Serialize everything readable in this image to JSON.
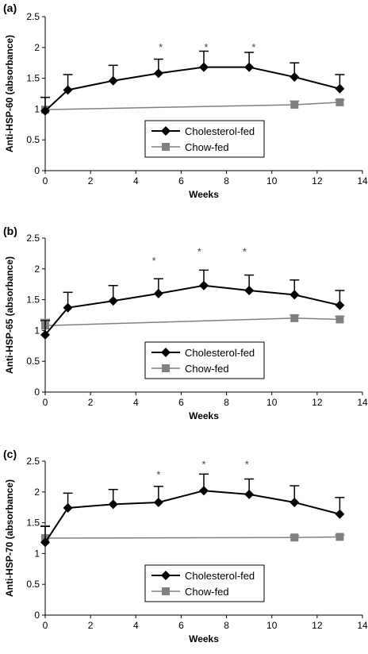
{
  "chart_data": [
    {
      "type": "line",
      "panel_label": "(a)",
      "xlabel": "Weeks",
      "ylabel": "Anti-HSP-60 (absorbance)",
      "xlim": [
        0,
        14
      ],
      "ylim": [
        0,
        2.5
      ],
      "xticks": [
        "0",
        "2",
        "4",
        "6",
        "8",
        "10",
        "12",
        "14"
      ],
      "yticks": [
        "0",
        "0.5",
        "1",
        "1.5",
        "2",
        "2.5"
      ],
      "legend_position": "lower-center",
      "series": [
        {
          "name": "Cholesterol-fed",
          "color": "#000000",
          "marker": "diamond",
          "x": [
            0,
            1,
            3,
            5,
            7,
            9,
            11,
            13
          ],
          "y": [
            0.97,
            1.31,
            1.46,
            1.58,
            1.68,
            1.68,
            1.52,
            1.33
          ],
          "error": [
            0.22,
            0.25,
            0.25,
            0.23,
            0.26,
            0.24,
            0.23,
            0.23
          ]
        },
        {
          "name": "Chow-fed",
          "color": "#808080",
          "marker": "square",
          "x": [
            0,
            11,
            13
          ],
          "y": [
            0.99,
            1.07,
            1.11
          ],
          "error": [
            0.2,
            0.06,
            0.04
          ]
        }
      ],
      "annotations": [
        {
          "text": "*",
          "x": 5.1,
          "y": 2.02
        },
        {
          "text": "*",
          "x": 7.1,
          "y": 2.02
        },
        {
          "text": "*",
          "x": 9.2,
          "y": 2.02
        }
      ]
    },
    {
      "type": "line",
      "panel_label": "(b)",
      "xlabel": "Weeks",
      "ylabel": "Anti-HSP-65 (absorbance)",
      "xlim": [
        0,
        14
      ],
      "ylim": [
        0,
        2.5
      ],
      "xticks": [
        "0",
        "2",
        "4",
        "6",
        "8",
        "10",
        "12",
        "14"
      ],
      "yticks": [
        "0",
        "0.5",
        "1",
        "1.5",
        "2",
        "2.5"
      ],
      "legend_position": "lower-center",
      "series": [
        {
          "name": "Cholesterol-fed",
          "color": "#000000",
          "marker": "diamond",
          "x": [
            0,
            1,
            3,
            5,
            7,
            9,
            11,
            13
          ],
          "y": [
            0.93,
            1.37,
            1.48,
            1.6,
            1.73,
            1.65,
            1.58,
            1.41
          ],
          "error": [
            0.23,
            0.25,
            0.25,
            0.24,
            0.25,
            0.25,
            0.24,
            0.24
          ]
        },
        {
          "name": "Chow-fed",
          "color": "#808080",
          "marker": "square",
          "x": [
            0,
            11,
            13
          ],
          "y": [
            1.08,
            1.2,
            1.18
          ],
          "error": [
            0.1,
            0.05,
            0.05
          ]
        }
      ],
      "annotations": [
        {
          "text": "*",
          "x": 4.8,
          "y": 2.15
        },
        {
          "text": "*",
          "x": 6.8,
          "y": 2.3
        },
        {
          "text": "*",
          "x": 8.8,
          "y": 2.3
        }
      ]
    },
    {
      "type": "line",
      "panel_label": "(c)",
      "xlabel": "Weeks",
      "ylabel": "Anti-HSP-70 (absorbance)",
      "xlim": [
        0,
        14
      ],
      "ylim": [
        0,
        2.5
      ],
      "xticks": [
        "0",
        "2",
        "4",
        "6",
        "8",
        "10",
        "12",
        "14"
      ],
      "yticks": [
        "0",
        "0.5",
        "1",
        "1.5",
        "2",
        "2.5"
      ],
      "legend_position": "lower-center",
      "series": [
        {
          "name": "Cholesterol-fed",
          "color": "#000000",
          "marker": "diamond",
          "x": [
            0,
            1,
            3,
            5,
            7,
            9,
            11,
            13
          ],
          "y": [
            1.18,
            1.74,
            1.8,
            1.83,
            2.02,
            1.96,
            1.83,
            1.64
          ],
          "error": [
            0.26,
            0.24,
            0.24,
            0.26,
            0.27,
            0.25,
            0.27,
            0.27
          ]
        },
        {
          "name": "Chow-fed",
          "color": "#808080",
          "marker": "square",
          "x": [
            0,
            11,
            13
          ],
          "y": [
            1.25,
            1.26,
            1.27
          ],
          "error": [
            0.2,
            0.03,
            0.03
          ]
        }
      ],
      "annotations": [
        {
          "text": "*",
          "x": 5.0,
          "y": 2.3
        },
        {
          "text": "*",
          "x": 7.0,
          "y": 2.47
        },
        {
          "text": "*",
          "x": 8.9,
          "y": 2.47
        }
      ]
    }
  ]
}
